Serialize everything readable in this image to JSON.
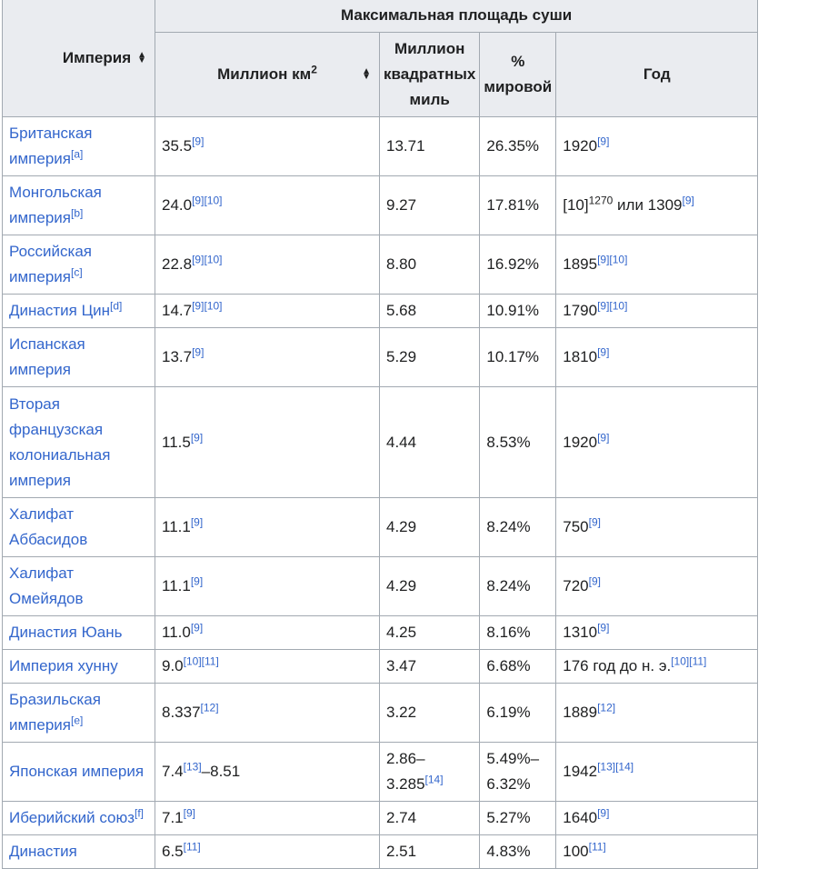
{
  "headers": {
    "empire": "Империя",
    "group": "Максимальная площадь суши",
    "mkm": "Миллион км",
    "mkm_sup": "2",
    "msqmi": "Миллион квадратных миль",
    "percent": "% мировой",
    "year": "Год"
  },
  "rows": [
    {
      "empire": "Британская империя",
      "empire_note": "[a]",
      "mkm": "35.5",
      "mkm_refs": "[9]",
      "mi": "13.71",
      "mi_refs": "",
      "pct": "26.35%",
      "year": "1920",
      "year_refs": "[9]"
    },
    {
      "empire": "Монгольская империя",
      "empire_note": "[b]",
      "mkm": "24.0",
      "mkm_refs": "[9][10]",
      "mi": "9.27",
      "mi_refs": "",
      "pct": "17.81%",
      "year_pre": "[10]",
      "year_pre_sup": "1270",
      "year": " или 1309",
      "year_refs": "[9]"
    },
    {
      "empire": "Российская империя",
      "empire_note": "[c]",
      "mkm": "22.8",
      "mkm_refs": "[9][10]",
      "mi": "8.80",
      "mi_refs": "",
      "pct": "16.92%",
      "year": "1895",
      "year_refs": "[9][10]"
    },
    {
      "empire": "Династия Цин",
      "empire_note": "[d]",
      "mkm": "14.7",
      "mkm_refs": "[9][10]",
      "mi": "5.68",
      "mi_refs": "",
      "pct": "10.91%",
      "year": "1790",
      "year_refs": "[9][10]"
    },
    {
      "empire": "Испанская империя",
      "empire_note": "",
      "mkm": "13.7",
      "mkm_refs": "[9]",
      "mi": "5.29",
      "mi_refs": "",
      "pct": "10.17%",
      "year": "1810",
      "year_refs": "[9]"
    },
    {
      "empire": "Вторая французская колониальная империя",
      "empire_note": "",
      "mkm": "11.5",
      "mkm_refs": "[9]",
      "mi": "4.44",
      "mi_refs": "",
      "pct": "8.53%",
      "year": "1920",
      "year_refs": "[9]"
    },
    {
      "empire": "Халифат Аббасидов",
      "empire_note": "",
      "mkm": "11.1",
      "mkm_refs": "[9]",
      "mi": "4.29",
      "mi_refs": "",
      "pct": "8.24%",
      "year": "750",
      "year_refs": "[9]"
    },
    {
      "empire": "Халифат Омейядов",
      "empire_note": "",
      "mkm": "11.1",
      "mkm_refs": "[9]",
      "mi": "4.29",
      "mi_refs": "",
      "pct": "8.24%",
      "year": "720",
      "year_refs": "[9]"
    },
    {
      "empire": "Династия Юань",
      "empire_note": "",
      "mkm": "11.0",
      "mkm_refs": "[9]",
      "mi": "4.25",
      "mi_refs": "",
      "pct": "8.16%",
      "year": "1310",
      "year_refs": "[9]"
    },
    {
      "empire": "Империя хунну",
      "empire_note": "",
      "mkm": "9.0",
      "mkm_refs": "[10][11]",
      "mi": "3.47",
      "mi_refs": "",
      "pct": "6.68%",
      "year": "176 год до н. э.",
      "year_refs": "[10][11]"
    },
    {
      "empire": "Бразильская империя",
      "empire_note": "[e]",
      "mkm": "8.337",
      "mkm_refs": "[12]",
      "mi": "3.22",
      "mi_refs": "",
      "pct": "6.19%",
      "year": "1889",
      "year_refs": "[12]"
    },
    {
      "empire": "Японская империя",
      "empire_note": "",
      "mkm": "7.4",
      "mkm_refs": "[13]",
      "mkm_tail": "–8.51",
      "mi": "2.86–3.285",
      "mi_refs": "[14]",
      "pct": "5.49%–6.32%",
      "year": "1942",
      "year_refs": "[13][14]"
    },
    {
      "empire": "Иберийский союз",
      "empire_note": "[f]",
      "mkm": "7.1",
      "mkm_refs": "[9]",
      "mi": "2.74",
      "mi_refs": "",
      "pct": "5.27%",
      "year": "1640",
      "year_refs": "[9]"
    },
    {
      "empire": "Династия",
      "empire_note": "",
      "mkm": "6.5",
      "mkm_refs": "[11]",
      "mi": "2.51",
      "mi_refs": "",
      "pct": "4.83%",
      "year": "100",
      "year_refs": "[11]"
    }
  ]
}
